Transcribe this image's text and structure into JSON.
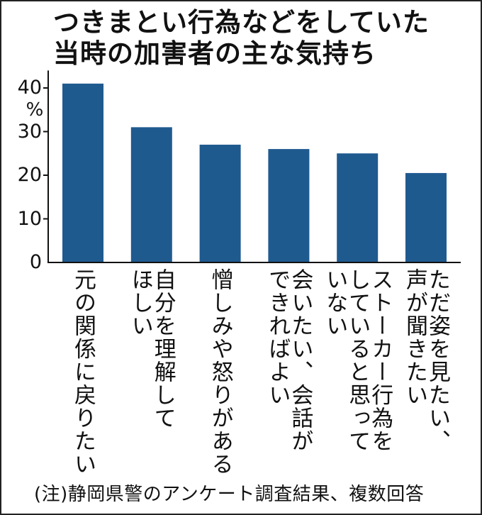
{
  "chart_data": {
    "type": "bar",
    "title_lines": [
      "つきまとい行為などをしていた",
      "当時の加害者の主な気持ち"
    ],
    "categories": [
      [
        "元の関係に戻りたい"
      ],
      [
        "自分を理解して",
        "ほしい"
      ],
      [
        "憎しみや怒りがある"
      ],
      [
        "会いたい、会話が",
        "できればよい"
      ],
      [
        "ストーカー行為を",
        "していると思って",
        "いない"
      ],
      [
        "ただ姿を見たい、",
        "声が聞きたい"
      ]
    ],
    "values": [
      41,
      31,
      27,
      26,
      25,
      20.5
    ],
    "yunit": "%",
    "yticks": [
      0,
      10,
      20,
      30,
      40
    ],
    "ylim": [
      0,
      44
    ],
    "grid": false,
    "bar_color": "#1f5a8f",
    "note": "(注)静岡県警のアンケート調査結果、複数回答"
  }
}
